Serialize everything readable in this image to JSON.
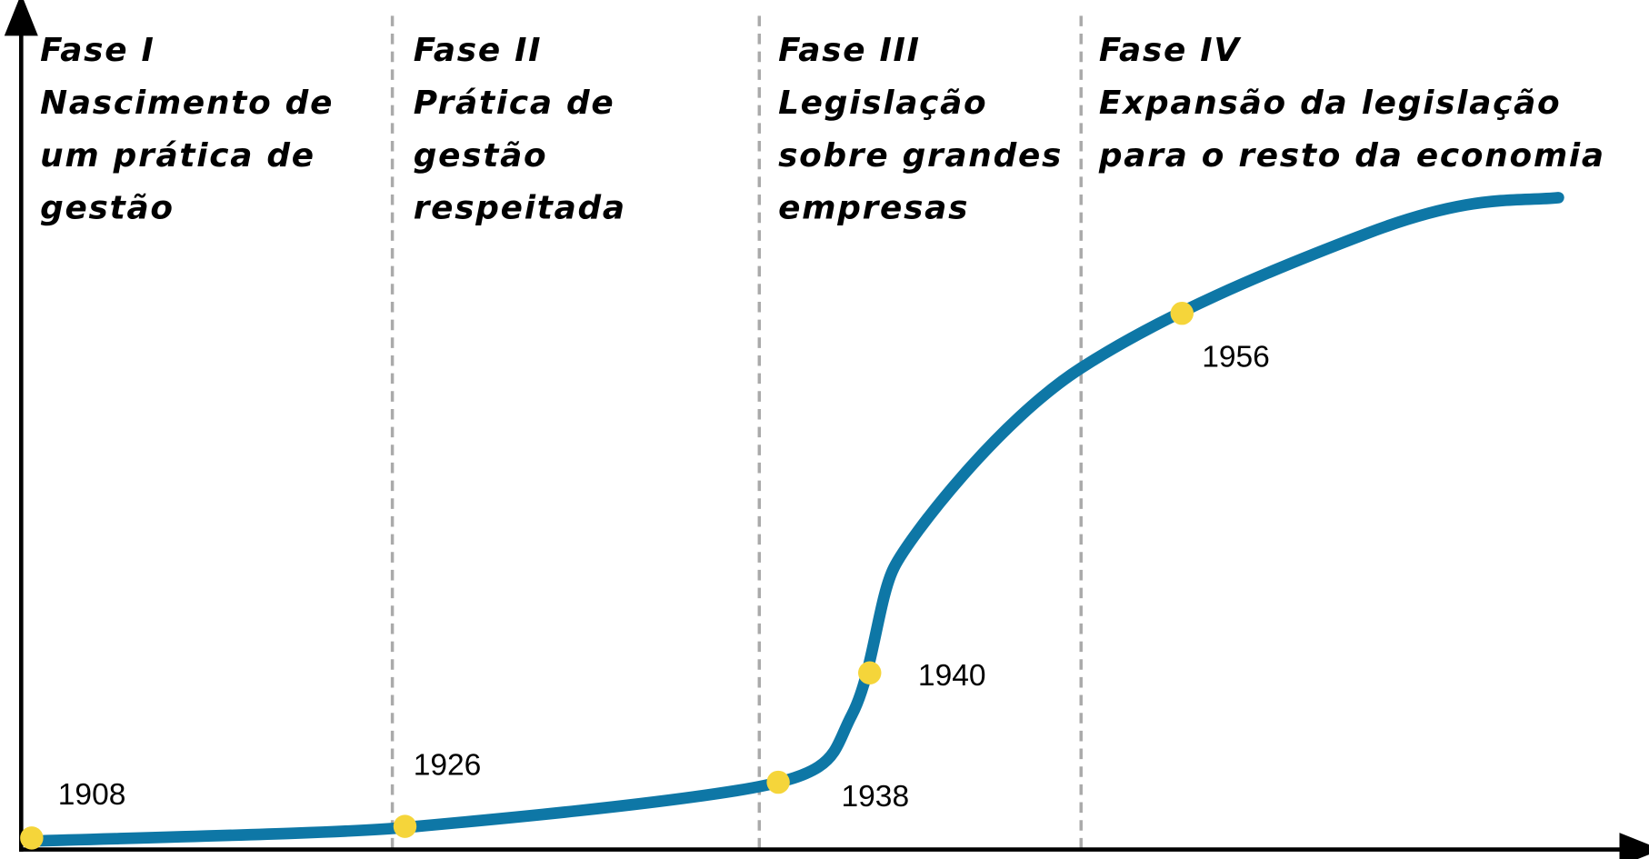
{
  "phases": [
    {
      "lines": [
        "Fase I",
        "Nascimento  de",
        "um prática de",
        "gestão"
      ]
    },
    {
      "lines": [
        "Fase II",
        "Prática de",
        "gestão",
        "respeitada"
      ]
    },
    {
      "lines": [
        "Fase III",
        "Legislação",
        "sobre grandes",
        "empresas"
      ]
    },
    {
      "lines": [
        "Fase IV",
        "Expansão da legislação",
        "para o resto da economia"
      ]
    }
  ],
  "milestones": [
    {
      "label": "1908"
    },
    {
      "label": "1926"
    },
    {
      "label": "1938"
    },
    {
      "label": "1940"
    },
    {
      "label": "1956"
    }
  ]
}
